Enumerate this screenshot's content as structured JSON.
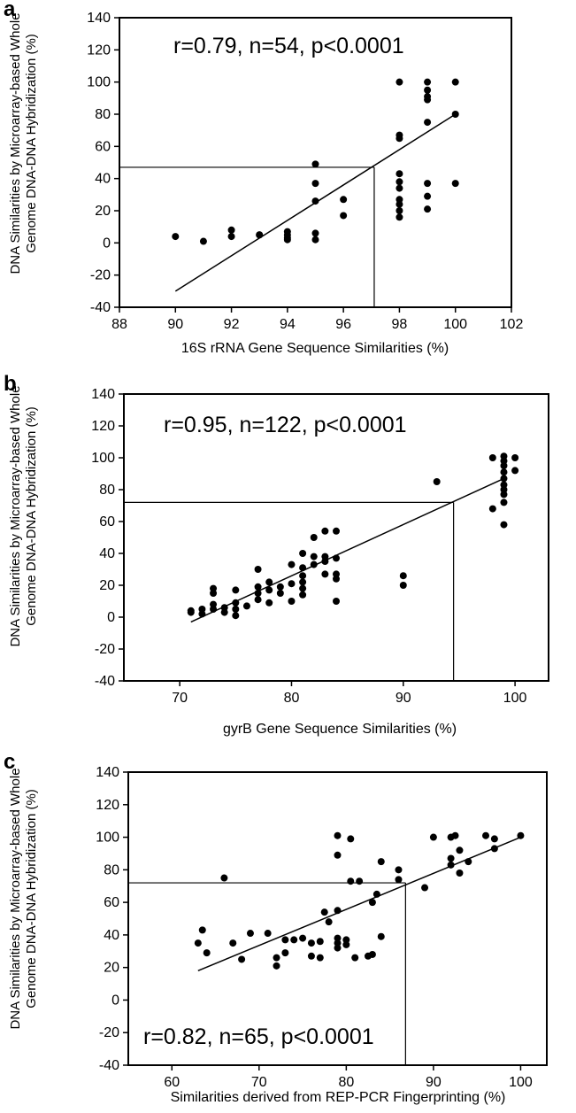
{
  "figure": {
    "ylabel_line1": "DNA Similarities by Microarray-based Whole",
    "ylabel_line2": "Genome DNA-DNA Hybridization (%)"
  },
  "chart_data": [
    {
      "type": "scatter",
      "panel": "a",
      "annotation": "r=0.79, n=54, p<0.0001",
      "xlabel": "16S rRNA Gene Sequence Similarities (%)",
      "ylabel": "DNA Similarities by Microarray-based Whole Genome DNA-DNA Hybridization (%)",
      "xlim": [
        88,
        102
      ],
      "ylim": [
        -40,
        140
      ],
      "xticks": [
        88,
        90,
        92,
        94,
        96,
        98,
        100,
        102
      ],
      "yticks": [
        -40,
        -20,
        0,
        20,
        40,
        60,
        80,
        100,
        120,
        140
      ],
      "grid": false,
      "regression": {
        "x": [
          90,
          100
        ],
        "y": [
          -30,
          80
        ]
      },
      "reference": {
        "x": 97.1,
        "y": 47
      },
      "points": [
        {
          "x": 90,
          "y": 4
        },
        {
          "x": 91,
          "y": 1
        },
        {
          "x": 92,
          "y": 8
        },
        {
          "x": 92,
          "y": 4
        },
        {
          "x": 93,
          "y": 5
        },
        {
          "x": 93,
          "y": 5
        },
        {
          "x": 94,
          "y": 7
        },
        {
          "x": 94,
          "y": 5
        },
        {
          "x": 94,
          "y": 3
        },
        {
          "x": 94,
          "y": 2
        },
        {
          "x": 95,
          "y": 49
        },
        {
          "x": 95,
          "y": 37
        },
        {
          "x": 95,
          "y": 26
        },
        {
          "x": 95,
          "y": 6
        },
        {
          "x": 95,
          "y": 2
        },
        {
          "x": 96,
          "y": 27
        },
        {
          "x": 96,
          "y": 17
        },
        {
          "x": 98,
          "y": 100
        },
        {
          "x": 98,
          "y": 67
        },
        {
          "x": 98,
          "y": 65
        },
        {
          "x": 98,
          "y": 43
        },
        {
          "x": 98,
          "y": 38
        },
        {
          "x": 98,
          "y": 34
        },
        {
          "x": 98,
          "y": 27
        },
        {
          "x": 98,
          "y": 24
        },
        {
          "x": 98,
          "y": 20
        },
        {
          "x": 98,
          "y": 16
        },
        {
          "x": 99,
          "y": 100
        },
        {
          "x": 99,
          "y": 95
        },
        {
          "x": 99,
          "y": 91
        },
        {
          "x": 99,
          "y": 89
        },
        {
          "x": 99,
          "y": 75
        },
        {
          "x": 99,
          "y": 37
        },
        {
          "x": 99,
          "y": 29
        },
        {
          "x": 99,
          "y": 21
        },
        {
          "x": 100,
          "y": 100
        },
        {
          "x": 100,
          "y": 80
        },
        {
          "x": 100,
          "y": 37
        }
      ]
    },
    {
      "type": "scatter",
      "panel": "b",
      "annotation": "r=0.95, n=122, p<0.0001",
      "xlabel": "gyrB Gene Sequence Similarities (%)",
      "ylabel": "DNA Similarities by Microarray-based Whole Genome DNA-DNA Hybridization (%)",
      "xlim": [
        65,
        103
      ],
      "ylim": [
        -40,
        140
      ],
      "xticks": [
        70,
        80,
        90,
        100
      ],
      "yticks": [
        -40,
        -20,
        0,
        20,
        40,
        60,
        80,
        100,
        120,
        140
      ],
      "grid": false,
      "regression": {
        "x": [
          71,
          99
        ],
        "y": [
          -3,
          87
        ]
      },
      "reference": {
        "x": 94.5,
        "y": 72
      },
      "points": [
        {
          "x": 71,
          "y": 4
        },
        {
          "x": 71,
          "y": 3
        },
        {
          "x": 72,
          "y": 5
        },
        {
          "x": 72,
          "y": 2
        },
        {
          "x": 73,
          "y": 18
        },
        {
          "x": 73,
          "y": 15
        },
        {
          "x": 73,
          "y": 8
        },
        {
          "x": 73,
          "y": 5
        },
        {
          "x": 74,
          "y": 6
        },
        {
          "x": 74,
          "y": 3
        },
        {
          "x": 75,
          "y": 17
        },
        {
          "x": 75,
          "y": 9
        },
        {
          "x": 75,
          "y": 5
        },
        {
          "x": 75,
          "y": 1
        },
        {
          "x": 76,
          "y": 7
        },
        {
          "x": 77,
          "y": 30
        },
        {
          "x": 77,
          "y": 19
        },
        {
          "x": 77,
          "y": 15
        },
        {
          "x": 77,
          "y": 11
        },
        {
          "x": 78,
          "y": 22
        },
        {
          "x": 78,
          "y": 17
        },
        {
          "x": 78,
          "y": 9
        },
        {
          "x": 79,
          "y": 19
        },
        {
          "x": 79,
          "y": 15
        },
        {
          "x": 80,
          "y": 33
        },
        {
          "x": 80,
          "y": 21
        },
        {
          "x": 80,
          "y": 10
        },
        {
          "x": 81,
          "y": 40
        },
        {
          "x": 81,
          "y": 31
        },
        {
          "x": 81,
          "y": 26
        },
        {
          "x": 81,
          "y": 22
        },
        {
          "x": 81,
          "y": 18
        },
        {
          "x": 81,
          "y": 14
        },
        {
          "x": 82,
          "y": 50
        },
        {
          "x": 82,
          "y": 38
        },
        {
          "x": 82,
          "y": 33
        },
        {
          "x": 83,
          "y": 54
        },
        {
          "x": 83,
          "y": 38
        },
        {
          "x": 83,
          "y": 35
        },
        {
          "x": 83,
          "y": 27
        },
        {
          "x": 84,
          "y": 54
        },
        {
          "x": 84,
          "y": 37
        },
        {
          "x": 84,
          "y": 27
        },
        {
          "x": 84,
          "y": 24
        },
        {
          "x": 84,
          "y": 10
        },
        {
          "x": 90,
          "y": 26
        },
        {
          "x": 90,
          "y": 20
        },
        {
          "x": 93,
          "y": 85
        },
        {
          "x": 98,
          "y": 100
        },
        {
          "x": 98,
          "y": 68
        },
        {
          "x": 99,
          "y": 101
        },
        {
          "x": 99,
          "y": 98
        },
        {
          "x": 99,
          "y": 95
        },
        {
          "x": 99,
          "y": 91
        },
        {
          "x": 99,
          "y": 87
        },
        {
          "x": 99,
          "y": 83
        },
        {
          "x": 99,
          "y": 80
        },
        {
          "x": 99,
          "y": 77
        },
        {
          "x": 99,
          "y": 72
        },
        {
          "x": 99,
          "y": 58
        },
        {
          "x": 100,
          "y": 100
        },
        {
          "x": 100,
          "y": 92
        }
      ]
    },
    {
      "type": "scatter",
      "panel": "c",
      "annotation": "r=0.82, n=65, p<0.0001",
      "xlabel": "Similarities derived from REP-PCR Fingerprinting (%)",
      "ylabel": "DNA Similarities by Microarray-based Whole Genome DNA-DNA Hybridization (%)",
      "xlim": [
        55,
        103
      ],
      "ylim": [
        -40,
        140
      ],
      "xticks": [
        60,
        70,
        80,
        90,
        100
      ],
      "yticks": [
        -40,
        -20,
        0,
        20,
        40,
        60,
        80,
        100,
        120,
        140
      ],
      "grid": false,
      "regression": {
        "x": [
          63,
          100
        ],
        "y": [
          18,
          100
        ]
      },
      "reference": {
        "x": 86.8,
        "y": 72
      },
      "points": [
        {
          "x": 63,
          "y": 35
        },
        {
          "x": 63.5,
          "y": 43
        },
        {
          "x": 64,
          "y": 29
        },
        {
          "x": 66,
          "y": 75
        },
        {
          "x": 67,
          "y": 35
        },
        {
          "x": 68,
          "y": 25
        },
        {
          "x": 69,
          "y": 41
        },
        {
          "x": 71,
          "y": 41
        },
        {
          "x": 72,
          "y": 26
        },
        {
          "x": 72,
          "y": 21
        },
        {
          "x": 73,
          "y": 37
        },
        {
          "x": 73,
          "y": 29
        },
        {
          "x": 74,
          "y": 37
        },
        {
          "x": 75,
          "y": 38
        },
        {
          "x": 76,
          "y": 35
        },
        {
          "x": 76,
          "y": 27
        },
        {
          "x": 77,
          "y": 36
        },
        {
          "x": 77,
          "y": 26
        },
        {
          "x": 77.5,
          "y": 54
        },
        {
          "x": 78,
          "y": 48
        },
        {
          "x": 79,
          "y": 101
        },
        {
          "x": 79,
          "y": 89
        },
        {
          "x": 79,
          "y": 55
        },
        {
          "x": 79,
          "y": 38
        },
        {
          "x": 79,
          "y": 35
        },
        {
          "x": 79,
          "y": 32
        },
        {
          "x": 80,
          "y": 37
        },
        {
          "x": 80,
          "y": 34
        },
        {
          "x": 80.5,
          "y": 99
        },
        {
          "x": 80.5,
          "y": 73
        },
        {
          "x": 81,
          "y": 26
        },
        {
          "x": 81.5,
          "y": 73
        },
        {
          "x": 82.5,
          "y": 27
        },
        {
          "x": 83,
          "y": 60
        },
        {
          "x": 83,
          "y": 28
        },
        {
          "x": 83.5,
          "y": 65
        },
        {
          "x": 84,
          "y": 85
        },
        {
          "x": 84,
          "y": 39
        },
        {
          "x": 86,
          "y": 80
        },
        {
          "x": 86,
          "y": 74
        },
        {
          "x": 89,
          "y": 69
        },
        {
          "x": 90,
          "y": 100
        },
        {
          "x": 92,
          "y": 100
        },
        {
          "x": 92,
          "y": 87
        },
        {
          "x": 92,
          "y": 83
        },
        {
          "x": 92.5,
          "y": 101
        },
        {
          "x": 93,
          "y": 92
        },
        {
          "x": 93,
          "y": 78
        },
        {
          "x": 94,
          "y": 85
        },
        {
          "x": 96,
          "y": 101
        },
        {
          "x": 97,
          "y": 99
        },
        {
          "x": 97,
          "y": 93
        },
        {
          "x": 100,
          "y": 101
        }
      ]
    }
  ]
}
